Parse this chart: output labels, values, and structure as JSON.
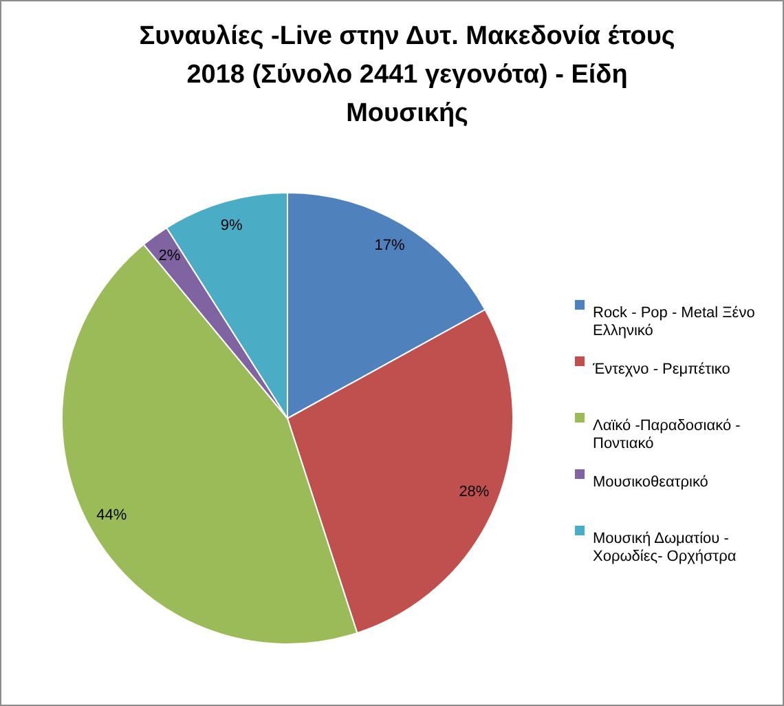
{
  "chart_data": {
    "type": "pie",
    "title": "Συναυλίες -Live στην Δυτ. Μακεδονία έτους 2018 (Σύνολο 2441 γεγονότα) - Είδη Μουσικής",
    "categories": [
      "Rock - Pop - Metal Ξένο Ελληνικό",
      "Έντεχνο - Ρεμπέτικο",
      "Λαϊκό -Παραδοσιακό - Ποντιακό",
      "Μουσικοθεατρικό",
      "Μουσική Δωματίου - Χορωδίες- Ορχήστρα"
    ],
    "values": [
      17,
      28,
      44,
      2,
      9
    ],
    "value_labels": [
      "17%",
      "28%",
      "44%",
      "2%",
      "9%"
    ],
    "colors": [
      "#4f81bd",
      "#c0504d",
      "#9bbb59",
      "#8064a2",
      "#4bacc6"
    ],
    "legend": "right"
  }
}
